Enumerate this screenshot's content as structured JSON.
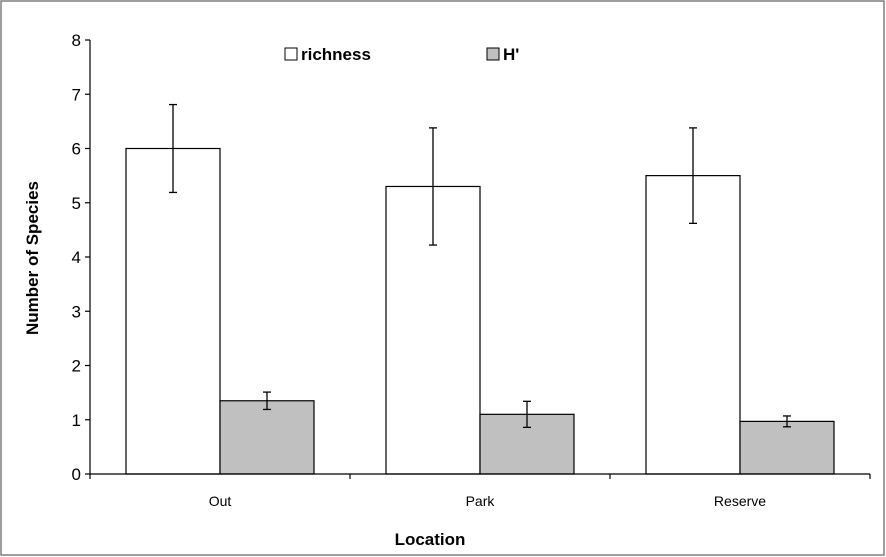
{
  "chart_data": {
    "type": "bar",
    "categories": [
      "Out",
      "Park",
      "Reserve"
    ],
    "series": [
      {
        "name": "richness",
        "color": "#ffffff",
        "values": [
          6.0,
          5.3,
          5.5
        ],
        "errors": [
          0.81,
          1.08,
          0.88
        ]
      },
      {
        "name": "H'",
        "color": "#c0c0c0",
        "values": [
          1.35,
          1.1,
          0.97
        ],
        "errors": [
          0.16,
          0.24,
          0.1
        ]
      }
    ],
    "xlabel": "Location",
    "ylabel": "Number of Species",
    "ylim": [
      0,
      8
    ],
    "yticks": [
      0,
      1,
      2,
      3,
      4,
      5,
      6,
      7,
      8
    ],
    "grid": false,
    "legend": "top-center",
    "border_color": "#7f7f7f"
  }
}
